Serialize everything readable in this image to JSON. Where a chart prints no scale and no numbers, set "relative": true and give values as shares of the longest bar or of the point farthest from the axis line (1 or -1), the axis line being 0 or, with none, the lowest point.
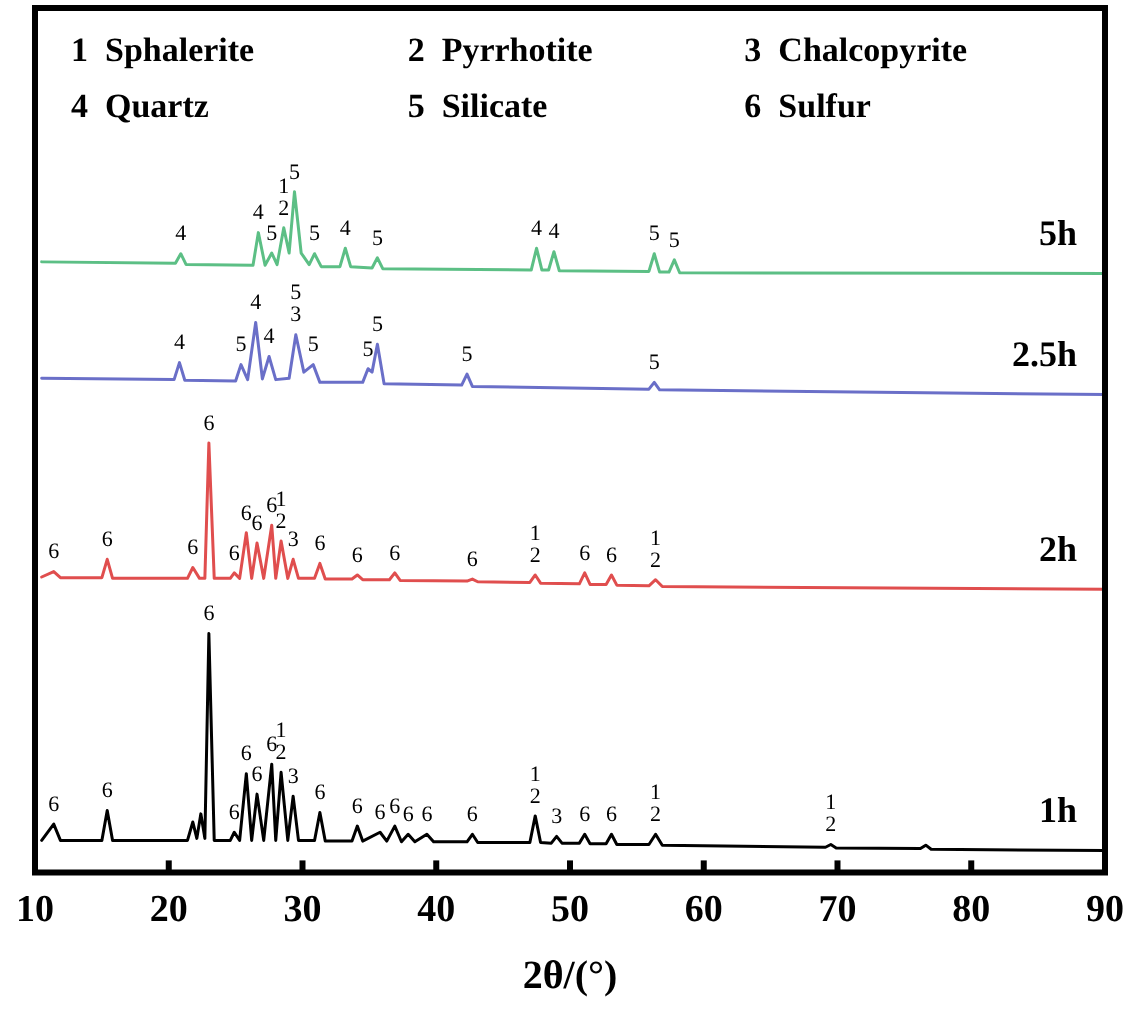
{
  "chart_data": {
    "type": "line",
    "relative": true,
    "xlabel": "2θ/(°)",
    "xlim": [
      10,
      90
    ],
    "xticks": [
      10,
      20,
      30,
      40,
      50,
      60,
      70,
      80,
      90
    ],
    "grid": false,
    "legend": false,
    "marker": "none",
    "line_style": "solid",
    "series": [
      {
        "name": "5h",
        "color": "#5cbf85",
        "x": [
          10.5,
          20.5,
          20.9,
          21.3,
          26.3,
          26.7,
          27.2,
          27.7,
          28.1,
          28.6,
          29.0,
          29.4,
          29.9,
          30.5,
          30.9,
          31.4,
          32.8,
          33.2,
          33.6,
          35.2,
          35.6,
          36.0,
          47.1,
          47.5,
          47.9,
          48.4,
          48.8,
          49.2,
          55.9,
          56.3,
          56.7,
          57.4,
          57.8,
          58.2,
          90
        ],
        "values": [
          0.897,
          0.895,
          0.909,
          0.893,
          0.892,
          0.94,
          0.892,
          0.91,
          0.893,
          0.947,
          0.91,
          1.0,
          0.91,
          0.893,
          0.909,
          0.89,
          0.89,
          0.917,
          0.89,
          0.888,
          0.903,
          0.887,
          0.885,
          0.917,
          0.885,
          0.885,
          0.912,
          0.884,
          0.883,
          0.909,
          0.882,
          0.882,
          0.9,
          0.881,
          0.88
        ]
      },
      {
        "name": "2.5h",
        "color": "#6a6fc8",
        "x": [
          10.5,
          20.4,
          20.8,
          21.2,
          25.0,
          25.4,
          25.9,
          26.5,
          27.0,
          27.5,
          28.0,
          29.0,
          29.5,
          30.1,
          30.8,
          31.3,
          34.5,
          34.9,
          35.2,
          35.6,
          36.1,
          41.9,
          42.3,
          42.7,
          55.9,
          56.3,
          56.7,
          90
        ],
        "values": [
          0.726,
          0.724,
          0.749,
          0.723,
          0.722,
          0.746,
          0.724,
          0.808,
          0.725,
          0.758,
          0.724,
          0.726,
          0.79,
          0.735,
          0.746,
          0.72,
          0.72,
          0.74,
          0.735,
          0.776,
          0.718,
          0.716,
          0.732,
          0.714,
          0.71,
          0.72,
          0.709,
          0.702
        ]
      },
      {
        "name": "2h",
        "color": "#e04e4e",
        "x": [
          10.5,
          11.4,
          11.9,
          15.0,
          15.4,
          15.8,
          21.4,
          21.8,
          22.3,
          22.7,
          23.0,
          23.4,
          24.6,
          24.9,
          25.3,
          25.8,
          26.2,
          26.6,
          27.1,
          27.7,
          28.0,
          28.4,
          28.9,
          29.3,
          29.7,
          30.9,
          31.3,
          31.7,
          33.7,
          34.1,
          34.5,
          36.5,
          36.9,
          37.3,
          42.3,
          42.7,
          43.1,
          47.0,
          47.4,
          47.8,
          50.7,
          51.1,
          51.5,
          52.7,
          53.1,
          53.5,
          55.9,
          56.4,
          56.9,
          90
        ],
        "values": [
          0.434,
          0.442,
          0.433,
          0.433,
          0.46,
          0.432,
          0.432,
          0.448,
          0.432,
          0.432,
          0.631,
          0.432,
          0.432,
          0.44,
          0.432,
          0.499,
          0.432,
          0.484,
          0.432,
          0.51,
          0.432,
          0.487,
          0.432,
          0.46,
          0.432,
          0.432,
          0.454,
          0.431,
          0.431,
          0.437,
          0.43,
          0.43,
          0.44,
          0.429,
          0.428,
          0.431,
          0.427,
          0.426,
          0.437,
          0.425,
          0.424,
          0.44,
          0.423,
          0.423,
          0.437,
          0.422,
          0.421,
          0.43,
          0.42,
          0.416
        ]
      },
      {
        "name": "1h",
        "color": "#000000",
        "x": [
          10.5,
          11.4,
          11.9,
          15.0,
          15.4,
          15.8,
          21.4,
          21.8,
          22.1,
          22.4,
          22.7,
          23.0,
          23.4,
          24.6,
          24.9,
          25.3,
          25.8,
          26.2,
          26.6,
          27.1,
          27.7,
          28.0,
          28.4,
          28.9,
          29.3,
          29.7,
          30.9,
          31.3,
          31.7,
          33.7,
          34.1,
          34.5,
          35.8,
          36.3,
          36.9,
          37.4,
          37.9,
          38.4,
          39.3,
          39.8,
          42.3,
          42.7,
          43.1,
          47.0,
          47.4,
          47.8,
          48.6,
          49.0,
          49.4,
          50.7,
          51.1,
          51.5,
          52.7,
          53.1,
          53.5,
          55.9,
          56.4,
          56.9,
          69.1,
          69.5,
          69.9,
          76.2,
          76.6,
          77.0,
          90
        ],
        "values": [
          0.047,
          0.071,
          0.047,
          0.047,
          0.091,
          0.047,
          0.047,
          0.074,
          0.05,
          0.086,
          0.05,
          0.351,
          0.047,
          0.047,
          0.059,
          0.047,
          0.145,
          0.047,
          0.115,
          0.047,
          0.159,
          0.047,
          0.147,
          0.047,
          0.112,
          0.047,
          0.047,
          0.088,
          0.046,
          0.046,
          0.068,
          0.046,
          0.059,
          0.046,
          0.068,
          0.045,
          0.056,
          0.045,
          0.056,
          0.045,
          0.045,
          0.056,
          0.044,
          0.044,
          0.083,
          0.044,
          0.043,
          0.053,
          0.043,
          0.043,
          0.056,
          0.042,
          0.042,
          0.056,
          0.041,
          0.041,
          0.056,
          0.04,
          0.037,
          0.041,
          0.036,
          0.035,
          0.04,
          0.034,
          0.032
        ]
      }
    ],
    "annotations": [
      "1  Sphalerite",
      "2  Pyrrhotite",
      "3  Chalcopyrite",
      "4  Quartz",
      "5  Silicate",
      "6  Sulfur",
      {
        "text": "4",
        "x": 20.9,
        "y": 0.909
      },
      {
        "text": "4",
        "x": 26.7,
        "y": 0.94
      },
      {
        "text": "5",
        "x": 27.7,
        "y": 0.91
      },
      {
        "text": "1\n2",
        "x": 28.6,
        "y": 0.947
      },
      {
        "text": "5",
        "x": 29.4,
        "y": 1.0
      },
      {
        "text": "5",
        "x": 30.9,
        "y": 0.909
      },
      {
        "text": "4",
        "x": 33.2,
        "y": 0.917
      },
      {
        "text": "5",
        "x": 35.6,
        "y": 0.903
      },
      {
        "text": "4",
        "x": 47.5,
        "y": 0.917
      },
      {
        "text": "4",
        "x": 48.8,
        "y": 0.912
      },
      {
        "text": "5",
        "x": 56.3,
        "y": 0.909
      },
      {
        "text": "5",
        "x": 57.8,
        "y": 0.9
      },
      {
        "text": "4",
        "x": 20.8,
        "y": 0.749
      },
      {
        "text": "5",
        "x": 25.4,
        "y": 0.746
      },
      {
        "text": "4",
        "x": 26.5,
        "y": 0.808
      },
      {
        "text": "4",
        "x": 27.5,
        "y": 0.758
      },
      {
        "text": "5\n3",
        "x": 29.5,
        "y": 0.79
      },
      {
        "text": "5",
        "x": 30.8,
        "y": 0.746
      },
      {
        "text": "5",
        "x": 34.9,
        "y": 0.74
      },
      {
        "text": "5",
        "x": 35.6,
        "y": 0.776
      },
      {
        "text": "5",
        "x": 42.3,
        "y": 0.732
      },
      {
        "text": "5",
        "x": 56.3,
        "y": 0.72
      },
      {
        "text": "6",
        "x": 11.4,
        "y": 0.442
      },
      {
        "text": "6",
        "x": 15.4,
        "y": 0.46
      },
      {
        "text": "6",
        "x": 21.8,
        "y": 0.448
      },
      {
        "text": "6",
        "x": 23.0,
        "y": 0.631
      },
      {
        "text": "6",
        "x": 24.9,
        "y": 0.44
      },
      {
        "text": "6",
        "x": 25.8,
        "y": 0.499
      },
      {
        "text": "6",
        "x": 26.6,
        "y": 0.484
      },
      {
        "text": "6",
        "x": 27.7,
        "y": 0.51
      },
      {
        "text": "1\n2",
        "x": 28.4,
        "y": 0.487
      },
      {
        "text": "3",
        "x": 29.3,
        "y": 0.46
      },
      {
        "text": "6",
        "x": 31.3,
        "y": 0.454
      },
      {
        "text": "6",
        "x": 34.1,
        "y": 0.437
      },
      {
        "text": "6",
        "x": 36.9,
        "y": 0.44
      },
      {
        "text": "6",
        "x": 42.7,
        "y": 0.431
      },
      {
        "text": "1\n2",
        "x": 47.4,
        "y": 0.437
      },
      {
        "text": "6",
        "x": 51.1,
        "y": 0.44
      },
      {
        "text": "6",
        "x": 53.1,
        "y": 0.437
      },
      {
        "text": "1\n2",
        "x": 56.4,
        "y": 0.43
      },
      {
        "text": "6",
        "x": 11.4,
        "y": 0.071
      },
      {
        "text": "6",
        "x": 15.4,
        "y": 0.091
      },
      {
        "text": "6",
        "x": 23.0,
        "y": 0.351
      },
      {
        "text": "6",
        "x": 24.9,
        "y": 0.059
      },
      {
        "text": "6",
        "x": 25.8,
        "y": 0.145
      },
      {
        "text": "6",
        "x": 26.6,
        "y": 0.115
      },
      {
        "text": "6",
        "x": 27.7,
        "y": 0.159
      },
      {
        "text": "1\n2",
        "x": 28.4,
        "y": 0.147
      },
      {
        "text": "3",
        "x": 29.3,
        "y": 0.112
      },
      {
        "text": "6",
        "x": 31.3,
        "y": 0.088
      },
      {
        "text": "6",
        "x": 34.1,
        "y": 0.068
      },
      {
        "text": "6",
        "x": 35.8,
        "y": 0.059
      },
      {
        "text": "6",
        "x": 36.9,
        "y": 0.068
      },
      {
        "text": "6",
        "x": 37.9,
        "y": 0.056
      },
      {
        "text": "6",
        "x": 39.3,
        "y": 0.056
      },
      {
        "text": "6",
        "x": 42.7,
        "y": 0.056
      },
      {
        "text": "1\n2",
        "x": 47.4,
        "y": 0.083
      },
      {
        "text": "3",
        "x": 49.0,
        "y": 0.053
      },
      {
        "text": "6",
        "x": 51.1,
        "y": 0.056
      },
      {
        "text": "6",
        "x": 53.1,
        "y": 0.056
      },
      {
        "text": "1\n2",
        "x": 56.4,
        "y": 0.056
      },
      {
        "text": "1\n2",
        "x": 69.5,
        "y": 0.041
      }
    ]
  }
}
